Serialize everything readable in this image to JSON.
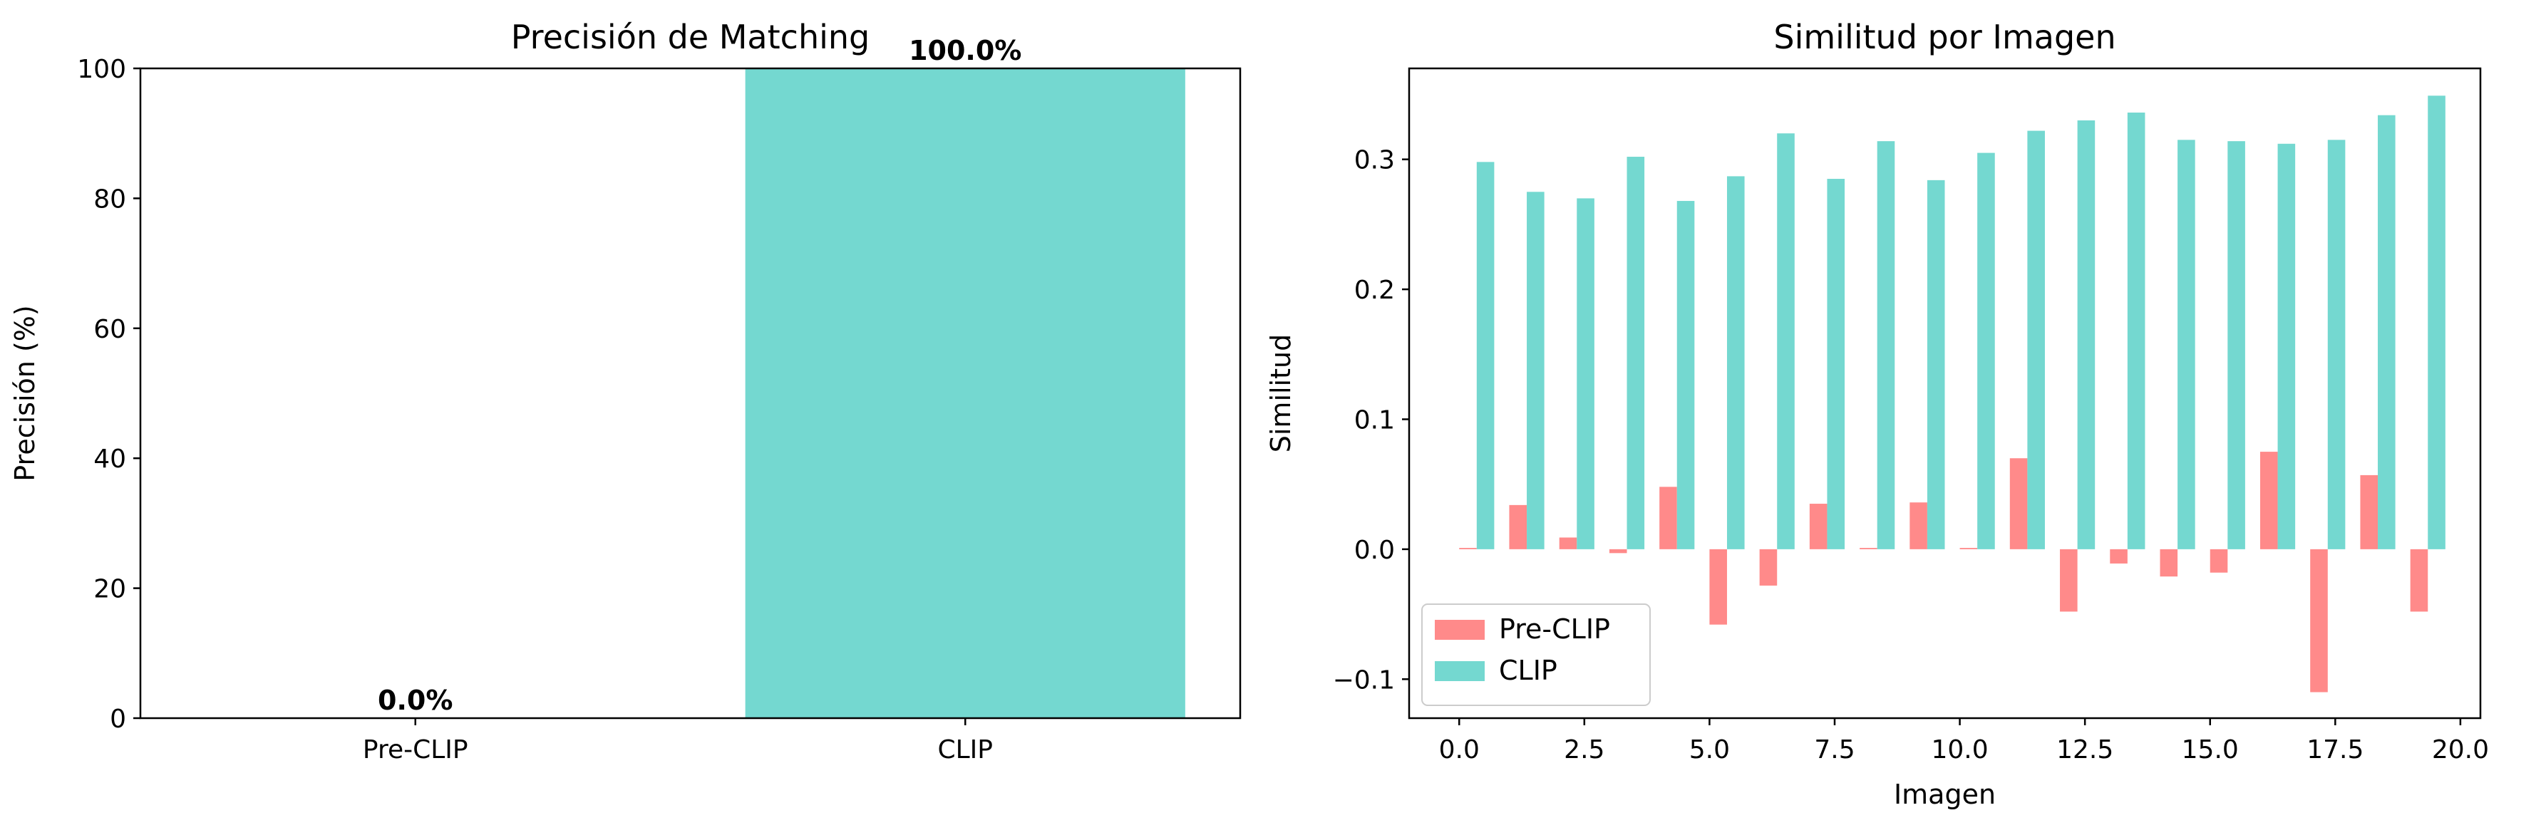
{
  "colors": {
    "pre_clip": "#FF8A8A",
    "clip": "#74D8D0",
    "axis": "#000000"
  },
  "chart_data": [
    {
      "type": "bar",
      "title": "Precisión de Matching",
      "xlabel": "",
      "ylabel": "Precisión (%)",
      "ylim": [
        0,
        100
      ],
      "yticks": [
        "0",
        "20",
        "40",
        "60",
        "80",
        "100"
      ],
      "categories": [
        "Pre-CLIP",
        "CLIP"
      ],
      "values": [
        0.0,
        100.0
      ],
      "data_labels": [
        "0.0%",
        "100.0%"
      ],
      "bar_colors": [
        "#FF8A8A",
        "#74D8D0"
      ],
      "grid": false
    },
    {
      "type": "bar",
      "title": "Similitud por Imagen",
      "xlabel": "Imagen",
      "ylabel": "Similitud",
      "xlim": [
        -1.0,
        20.4
      ],
      "ylim": [
        -0.13,
        0.37
      ],
      "xticks": [
        "0.0",
        "2.5",
        "5.0",
        "7.5",
        "10.0",
        "12.5",
        "15.0",
        "17.5",
        "20.0"
      ],
      "yticks": [
        "−0.1",
        "0.0",
        "0.1",
        "0.2",
        "0.3"
      ],
      "x": [
        0,
        1,
        2,
        3,
        4,
        5,
        6,
        7,
        8,
        9,
        10,
        11,
        12,
        13,
        14,
        15,
        16,
        17,
        18,
        19
      ],
      "series": [
        {
          "name": "Pre-CLIP",
          "color": "#FF8A8A",
          "values": [
            0.001,
            0.034,
            0.009,
            -0.003,
            0.048,
            -0.058,
            -0.028,
            0.035,
            0.001,
            0.036,
            0.001,
            0.07,
            -0.048,
            -0.011,
            -0.021,
            -0.018,
            0.075,
            -0.11,
            0.057,
            -0.048
          ]
        },
        {
          "name": "CLIP",
          "color": "#74D8D0",
          "values": [
            0.298,
            0.275,
            0.27,
            0.302,
            0.268,
            0.287,
            0.32,
            0.285,
            0.314,
            0.284,
            0.305,
            0.322,
            0.33,
            0.336,
            0.315,
            0.314,
            0.312,
            0.315,
            0.334,
            0.349
          ]
        }
      ],
      "legend": {
        "position": "bottom-left",
        "entries": [
          "Pre-CLIP",
          "CLIP"
        ]
      },
      "grid": false
    }
  ]
}
